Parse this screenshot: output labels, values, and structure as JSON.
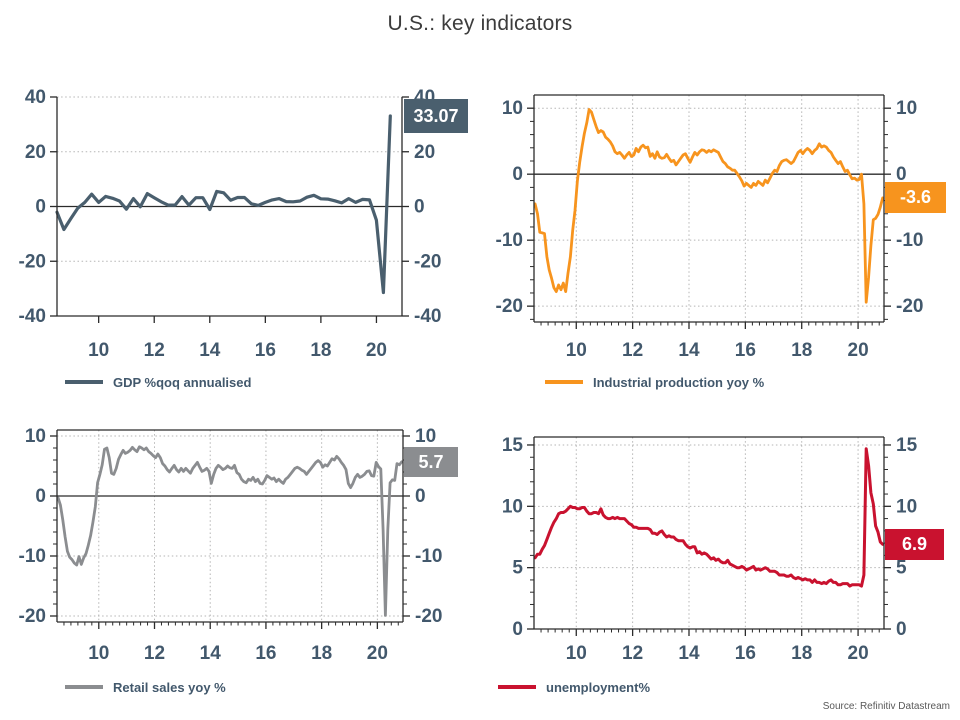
{
  "title": "U.S.: key indicators",
  "source": "Source: Refinitiv Datastream",
  "style": {
    "background": "#ffffff",
    "title_color": "#3C3C3C",
    "axis_label_color": "#42586C",
    "grid_color": "#b5b5b5",
    "frame_color": "#2b2b2b",
    "source_color": "#595959",
    "badge_text_color": "#ffffff"
  },
  "chart_data": [
    {
      "id": "gdp",
      "type": "line",
      "legend": "GDP %qoq annualised",
      "color": "#4A5F6E",
      "line_width": 3.2,
      "badge_label": "33.07",
      "badge_value": 33.07,
      "xlim": [
        2008.5,
        2020.92
      ],
      "ylim": [
        -40,
        40
      ],
      "yticks": [
        -40,
        -20,
        0,
        20,
        40
      ],
      "ytick_labels": [
        "-40",
        "-20",
        "0",
        "20",
        "40"
      ],
      "grid_y": [
        40,
        20,
        -20
      ],
      "grid_x": false,
      "minor_y": null,
      "minor_x": false,
      "top_frame": false,
      "zero_line": true,
      "xticks": [
        2010,
        2012,
        2014,
        2016,
        2018,
        2020
      ],
      "xtick_labels": [
        "10",
        "12",
        "14",
        "16",
        "18",
        "20"
      ],
      "x0": 2008.5,
      "dx": 0.25,
      "values": [
        -2.1,
        -8.4,
        -4.4,
        -0.6,
        1.5,
        4.5,
        1.5,
        3.7,
        3.0,
        2.0,
        -1.0,
        2.9,
        -0.1,
        4.7,
        3.2,
        1.7,
        0.5,
        0.5,
        3.6,
        0.5,
        3.2,
        3.2,
        -1.1,
        5.5,
        5.0,
        2.3,
        3.3,
        3.3,
        1.0,
        0.4,
        1.5,
        2.4,
        2.9,
        1.8,
        1.7,
        2.0,
        3.4,
        4.1,
        2.8,
        2.7,
        2.1,
        1.3,
        2.9,
        1.5,
        2.6,
        2.4,
        -5.0,
        -31.4,
        33.07
      ]
    },
    {
      "id": "industrial-production",
      "type": "line",
      "legend": "Industrial production yoy %",
      "color": "#F7941E",
      "line_width": 2.8,
      "badge_label": "-3.6",
      "badge_value": -3.6,
      "xlim": [
        2008.5,
        2020.92
      ],
      "ylim": [
        -22.4,
        12
      ],
      "yticks": [
        -20,
        -10,
        0,
        10
      ],
      "ytick_labels": [
        "-20",
        "-10",
        "0",
        "10"
      ],
      "grid_y": [
        10,
        -10,
        -20
      ],
      "grid_x": true,
      "minor_y": 2,
      "minor_x": true,
      "top_frame": true,
      "zero_line": true,
      "xticks": [
        2010,
        2012,
        2014,
        2016,
        2018,
        2020
      ],
      "xtick_labels": [
        "10",
        "12",
        "14",
        "16",
        "18",
        "20"
      ],
      "x0": 2008.54,
      "dx": 0.08333,
      "values": [
        -4.5,
        -6.0,
        -8.8,
        -8.9,
        -9.0,
        -12.5,
        -14.5,
        -15.8,
        -17.2,
        -17.8,
        -16.8,
        -17.5,
        -16.5,
        -17.8,
        -15.0,
        -12.5,
        -8.5,
        -5.5,
        -1.0,
        1.8,
        4.2,
        6.2,
        7.8,
        9.8,
        9.4,
        8.3,
        7.2,
        6.3,
        6.6,
        6.4,
        5.6,
        5.3,
        4.9,
        4.3,
        3.4,
        3.1,
        3.3,
        2.9,
        2.4,
        2.9,
        3.3,
        2.7,
        2.9,
        3.9,
        3.4,
        4.1,
        4.4,
        4.0,
        4.1,
        2.7,
        3.1,
        2.4,
        3.4,
        2.6,
        2.4,
        2.5,
        3.0,
        2.4,
        1.9,
        2.1,
        1.4,
        1.9,
        2.4,
        2.9,
        3.1,
        2.4,
        1.8,
        2.6,
        3.3,
        2.9,
        3.4,
        3.7,
        3.6,
        3.3,
        3.6,
        3.4,
        3.7,
        3.5,
        3.3,
        2.6,
        1.9,
        1.6,
        1.1,
        0.9,
        0.6,
        0.6,
        0.1,
        -0.4,
        -1.0,
        -1.8,
        -1.4,
        -1.7,
        -2.0,
        -1.4,
        -1.7,
        -1.1,
        -1.4,
        -1.7,
        -0.9,
        -1.3,
        -0.6,
        0.1,
        0.6,
        0.4,
        1.3,
        1.9,
        2.1,
        2.2,
        1.9,
        1.6,
        1.9,
        2.6,
        3.3,
        3.6,
        3.1,
        3.6,
        3.9,
        3.6,
        3.1,
        3.6,
        3.9,
        4.6,
        4.1,
        4.3,
        4.1,
        3.6,
        3.3,
        2.6,
        2.1,
        1.6,
        1.9,
        1.1,
        0.4,
        0.6,
        -0.1,
        -0.7,
        -0.6,
        -0.9,
        -0.8,
        0.0,
        -4.5,
        -19.4,
        -15.6,
        -10.8,
        -6.9,
        -6.7,
        -6.1,
        -5.0,
        -3.6
      ]
    },
    {
      "id": "retail-sales",
      "type": "line",
      "legend": "Retail sales yoy %",
      "color": "#8B8D90",
      "line_width": 2.8,
      "badge_label": "5.7",
      "badge_value": 5.7,
      "xlim": [
        2008.5,
        2020.92
      ],
      "ylim": [
        -21,
        11
      ],
      "yticks": [
        -20,
        -10,
        0,
        10
      ],
      "ytick_labels": [
        "-20",
        "-10",
        "0",
        "10"
      ],
      "grid_y": [
        10,
        -10,
        -20
      ],
      "grid_x": true,
      "minor_y": 2,
      "minor_x": true,
      "top_frame": true,
      "zero_line": true,
      "xticks": [
        2010,
        2012,
        2014,
        2016,
        2018,
        2020
      ],
      "xtick_labels": [
        "10",
        "12",
        "14",
        "16",
        "18",
        "20"
      ],
      "x0": 2008.54,
      "dx": 0.08333,
      "values": [
        -0.3,
        -1.5,
        -4.0,
        -6.8,
        -9.2,
        -10.2,
        -10.6,
        -11.2,
        -11.5,
        -10.1,
        -11.4,
        -10.3,
        -9.6,
        -8.2,
        -6.6,
        -4.4,
        -1.8,
        2.2,
        3.6,
        5.2,
        7.8,
        8.0,
        6.4,
        3.8,
        3.6,
        4.6,
        6.1,
        6.9,
        7.6,
        7.1,
        7.3,
        7.6,
        8.1,
        7.7,
        7.4,
        8.2,
        8.0,
        7.7,
        8.0,
        7.4,
        7.1,
        6.7,
        6.4,
        7.0,
        6.4,
        5.4,
        5.0,
        4.4,
        4.0,
        4.6,
        5.1,
        4.4,
        4.0,
        4.6,
        4.1,
        4.6,
        4.2,
        3.8,
        4.6,
        5.1,
        5.6,
        4.8,
        4.1,
        4.3,
        4.6,
        4.1,
        2.1,
        3.6,
        4.6,
        5.1,
        4.8,
        4.4,
        4.6,
        5.0,
        4.7,
        4.6,
        5.1,
        3.9,
        3.6,
        2.8,
        2.4,
        2.2,
        2.8,
        2.6,
        3.1,
        2.4,
        2.8,
        2.1,
        2.0,
        2.6,
        3.4,
        3.1,
        2.8,
        3.0,
        2.4,
        2.8,
        2.4,
        2.1,
        2.8,
        3.1,
        3.6,
        4.1,
        4.6,
        4.8,
        4.6,
        4.3,
        4.1,
        3.6,
        4.1,
        4.6,
        5.1,
        5.6,
        5.9,
        5.6,
        4.8,
        5.2,
        5.0,
        5.6,
        6.2,
        6.0,
        6.6,
        6.2,
        5.6,
        5.1,
        4.4,
        2.1,
        1.4,
        2.1,
        3.1,
        3.6,
        3.1,
        3.3,
        3.6,
        4.1,
        4.2,
        3.4,
        3.3,
        5.6,
        4.9,
        4.5,
        -5.6,
        -19.9,
        -5.6,
        2.2,
        2.7,
        2.6,
        5.4,
        5.2,
        5.7
      ]
    },
    {
      "id": "unemployment",
      "type": "line",
      "legend": "unemployment%",
      "color": "#C9122F",
      "line_width": 3.0,
      "badge_label": "6.9",
      "badge_value": 6.9,
      "xlim": [
        2008.5,
        2020.92
      ],
      "ylim": [
        0,
        15.65
      ],
      "yticks": [
        0,
        5,
        10,
        15
      ],
      "ytick_labels": [
        "0",
        "5",
        "10",
        "15"
      ],
      "grid_y": [
        15,
        10,
        5
      ],
      "grid_x": true,
      "minor_y": 1,
      "minor_x": true,
      "top_frame": true,
      "zero_line": false,
      "xticks": [
        2010,
        2012,
        2014,
        2016,
        2018,
        2020
      ],
      "xtick_labels": [
        "10",
        "12",
        "14",
        "16",
        "18",
        "20"
      ],
      "x0": 2008.54,
      "dx": 0.08333,
      "values": [
        5.8,
        6.1,
        6.1,
        6.5,
        6.8,
        7.3,
        7.8,
        8.3,
        8.7,
        9.0,
        9.4,
        9.5,
        9.5,
        9.6,
        9.8,
        10.0,
        9.9,
        9.9,
        9.8,
        9.8,
        9.9,
        9.9,
        9.6,
        9.4,
        9.4,
        9.5,
        9.5,
        9.4,
        9.8,
        9.3,
        9.1,
        9.0,
        9.0,
        9.1,
        9.0,
        9.1,
        9.0,
        9.0,
        9.0,
        8.8,
        8.6,
        8.5,
        8.3,
        8.3,
        8.2,
        8.2,
        8.2,
        8.2,
        8.2,
        8.1,
        7.8,
        7.8,
        7.7,
        7.9,
        8.0,
        7.7,
        7.5,
        7.6,
        7.5,
        7.5,
        7.3,
        7.2,
        7.2,
        7.2,
        6.9,
        6.7,
        6.6,
        6.7,
        6.7,
        6.2,
        6.3,
        6.1,
        6.2,
        6.1,
        5.9,
        5.7,
        5.8,
        5.6,
        5.7,
        5.5,
        5.4,
        5.4,
        5.6,
        5.3,
        5.2,
        5.1,
        5.0,
        5.0,
        5.1,
        5.0,
        4.8,
        4.9,
        5.0,
        5.1,
        4.8,
        4.9,
        4.8,
        4.9,
        5.0,
        4.9,
        4.7,
        4.7,
        4.7,
        4.6,
        4.4,
        4.4,
        4.4,
        4.3,
        4.3,
        4.4,
        4.2,
        4.1,
        4.2,
        4.1,
        4.0,
        4.1,
        4.0,
        4.0,
        3.8,
        4.0,
        3.8,
        3.8,
        3.7,
        3.8,
        3.7,
        3.9,
        4.0,
        3.8,
        3.8,
        3.6,
        3.6,
        3.7,
        3.7,
        3.7,
        3.5,
        3.6,
        3.6,
        3.6,
        3.6,
        3.5,
        4.4,
        14.7,
        13.3,
        11.1,
        10.2,
        8.4,
        7.9,
        7.1,
        6.9
      ]
    }
  ]
}
